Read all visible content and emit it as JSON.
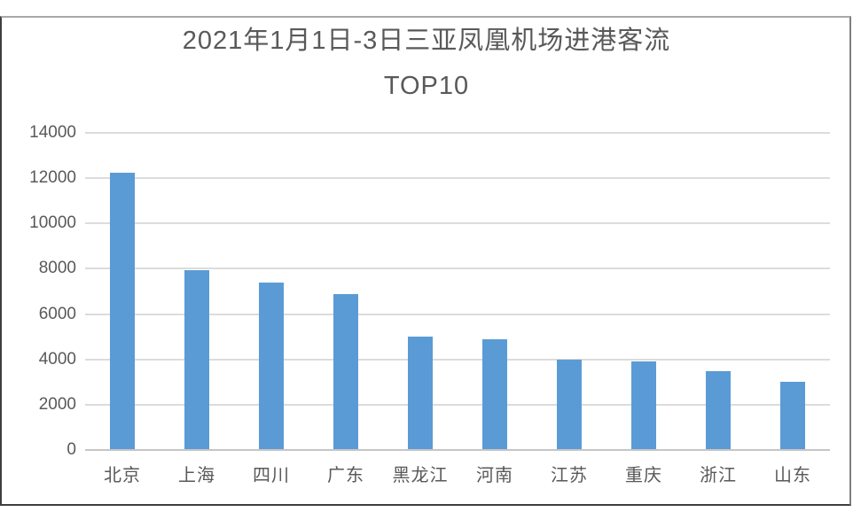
{
  "chart_data": {
    "type": "bar",
    "title": "2021年1月1日-3日三亚凤凰机场进港客流",
    "subtitle": "TOP10",
    "categories": [
      "北京",
      "上海",
      "四川",
      "广东",
      "黑龙江",
      "河南",
      "江苏",
      "重庆",
      "浙江",
      "山东"
    ],
    "values": [
      12250,
      7950,
      7400,
      6900,
      5000,
      4900,
      4000,
      3900,
      3500,
      3000
    ],
    "xlabel": "",
    "ylabel": "",
    "ylim": [
      0,
      14000
    ],
    "ytick_step": 2000,
    "yticks": [
      14000,
      12000,
      10000,
      8000,
      6000,
      4000,
      2000,
      0
    ],
    "grid": true,
    "legend": "none",
    "colors": {
      "bar": "#5B9BD5",
      "gridline": "#DCDCDC",
      "axis_line": "#C6C6C6",
      "text": "#595959",
      "background": "#FFFFFF",
      "frame_border": "#3F3F3F"
    }
  }
}
